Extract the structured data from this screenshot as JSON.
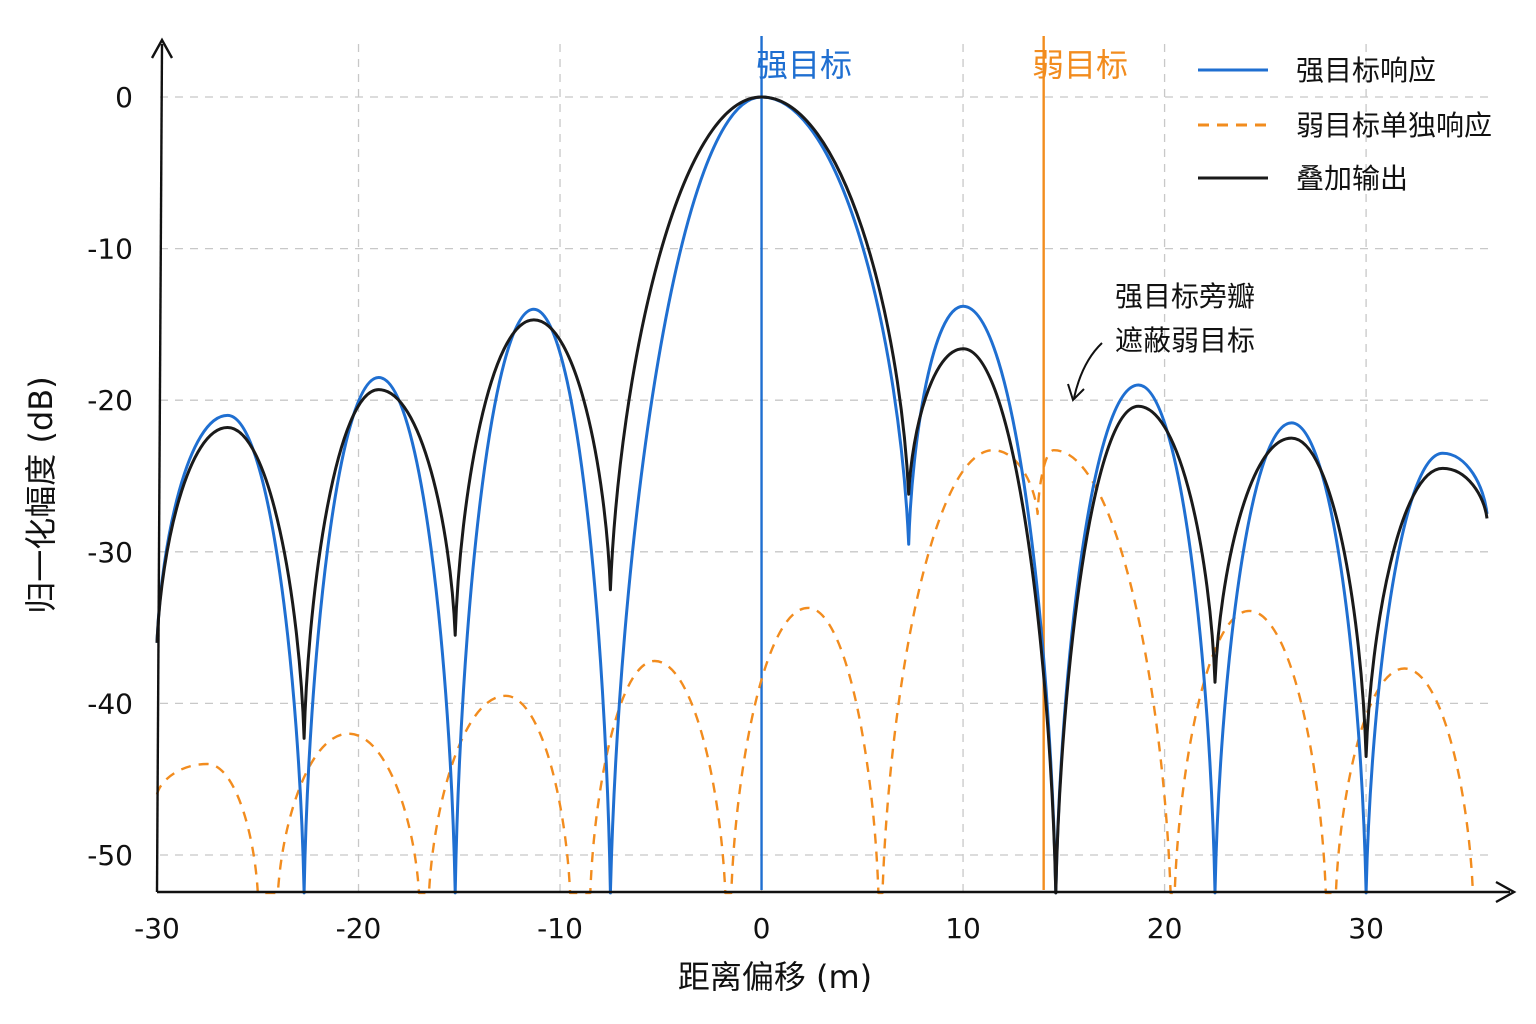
{
  "chart_data": {
    "type": "line",
    "xlabel": "距离偏移 (m)",
    "ylabel": "归一化幅度 (dB)",
    "xlim": [
      -30,
      36
    ],
    "ylim": [
      -52.5,
      3
    ],
    "x_ticks": [
      "-30",
      "-20",
      "-10",
      "0",
      "10",
      "20",
      "30"
    ],
    "y_ticks": [
      "0",
      "-10",
      "-20",
      "-30",
      "-40",
      "-50"
    ],
    "grid": true,
    "legend_position": "top-right",
    "markers": [
      {
        "name": "strong",
        "label": "强目标",
        "x": 0,
        "color": "#1f6fd1"
      },
      {
        "name": "weak",
        "label": "弱目标",
        "x": 14,
        "color": "#f28c1e"
      }
    ],
    "annotation": {
      "lines": [
        "强目标旁瓣",
        "遮蔽弱目标"
      ],
      "arrow_to": [
        16,
        -20
      ]
    },
    "series": [
      {
        "name": "强目标响应",
        "color": "#1f6fd1",
        "style": "solid",
        "x": [
          -30,
          -26.5,
          -22.7,
          -19,
          -15.2,
          -11.3,
          -7.5,
          0,
          7.3,
          10,
          14.6,
          18.7,
          22.5,
          26.3,
          30,
          33.8,
          36
        ],
        "y": [
          -36,
          -21,
          -52.5,
          -18.5,
          -52.5,
          -14,
          -52.5,
          0,
          -29.5,
          -13.8,
          -52.5,
          -19,
          -52.5,
          -21.5,
          -52.5,
          -23.5,
          -27.5
        ]
      },
      {
        "name": "弱目标单独响应",
        "color": "#f28c1e",
        "style": "dashed",
        "x": [
          -30,
          -27.5,
          -25,
          -24,
          -20.5,
          -17,
          -16.5,
          -12.7,
          -9.5,
          -8.5,
          -5.3,
          -1.8,
          -1.5,
          2.3,
          5.8,
          6,
          11.5,
          13.7,
          14.5,
          20.3,
          20.5,
          24.2,
          28,
          28.5,
          31.9,
          35.3
        ],
        "y": [
          -46,
          -44,
          -52.5,
          -52.5,
          -42,
          -52.5,
          -52.5,
          -39.5,
          -52.5,
          -52.5,
          -37.2,
          -52.5,
          -52.5,
          -33.7,
          -52.5,
          -52.5,
          -23.3,
          -27.5,
          -23.3,
          -52.5,
          -52.5,
          -33.9,
          -52.5,
          -52.5,
          -37.7,
          -52.5
        ]
      },
      {
        "name": "叠加输出",
        "color": "#1a1a1a",
        "style": "solid",
        "x": [
          -30,
          -26.5,
          -22.7,
          -19,
          -15.2,
          -11.3,
          -7.5,
          0,
          7.3,
          10,
          14.6,
          18.7,
          22.5,
          26.3,
          30,
          33.8,
          36
        ],
        "y": [
          -36,
          -21.8,
          -42.3,
          -19.3,
          -35.5,
          -14.7,
          -32.5,
          0,
          -26.2,
          -16.6,
          -52.5,
          -20.4,
          -38.6,
          -22.5,
          -43.5,
          -24.5,
          -27.8
        ]
      }
    ]
  }
}
